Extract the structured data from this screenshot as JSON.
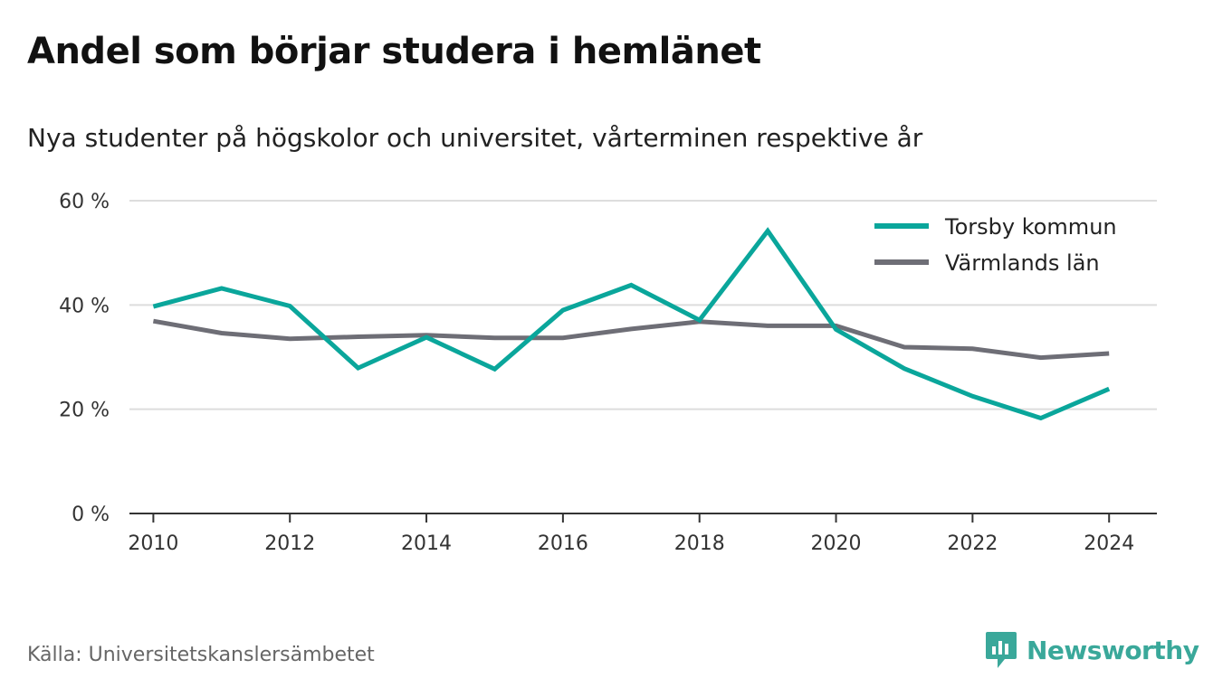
{
  "header": {
    "title": "Andel som börjar studera i hemlänet",
    "subtitle": "Nya studenter på högskolor och universitet, vårterminen respektive år"
  },
  "footer": {
    "source": "Källa: Universitetskanslersämbetet",
    "brand": "Newsworthy",
    "brand_icon": "newsworthy-logo-icon"
  },
  "colors": {
    "torsby": "#0aa69b",
    "varmland": "#6e6e76",
    "grid": "#dddddd",
    "axis": "#333333"
  },
  "chart_data": {
    "type": "line",
    "x": [
      2010,
      2011,
      2012,
      2013,
      2014,
      2015,
      2016,
      2017,
      2018,
      2019,
      2020,
      2021,
      2022,
      2023,
      2024
    ],
    "x_ticks": [
      2010,
      2012,
      2014,
      2016,
      2018,
      2020,
      2022,
      2024
    ],
    "x_tick_labels": [
      "2010",
      "2012",
      "2014",
      "2016",
      "2018",
      "2020",
      "2022",
      "2024"
    ],
    "y_ticks": [
      0,
      20,
      40,
      60
    ],
    "y_tick_labels": [
      "0 %",
      "20 %",
      "40 %",
      "60 %"
    ],
    "ylim": [
      0,
      60
    ],
    "xlim": [
      2009.65,
      2024.7
    ],
    "grid": true,
    "legend_position": "top-right",
    "series": [
      {
        "name": "Torsby kommun",
        "color": "#0aa69b",
        "values": [
          39.7,
          43.2,
          39.8,
          27.9,
          33.8,
          27.7,
          39.0,
          43.8,
          37.1,
          54.2,
          35.3,
          27.8,
          22.5,
          18.3,
          23.9
        ]
      },
      {
        "name": "Värmlands län",
        "color": "#6e6e76",
        "values": [
          36.9,
          34.6,
          33.5,
          33.9,
          34.2,
          33.7,
          33.7,
          35.4,
          36.8,
          36.0,
          36.0,
          31.9,
          31.6,
          29.9,
          30.7
        ]
      }
    ]
  }
}
